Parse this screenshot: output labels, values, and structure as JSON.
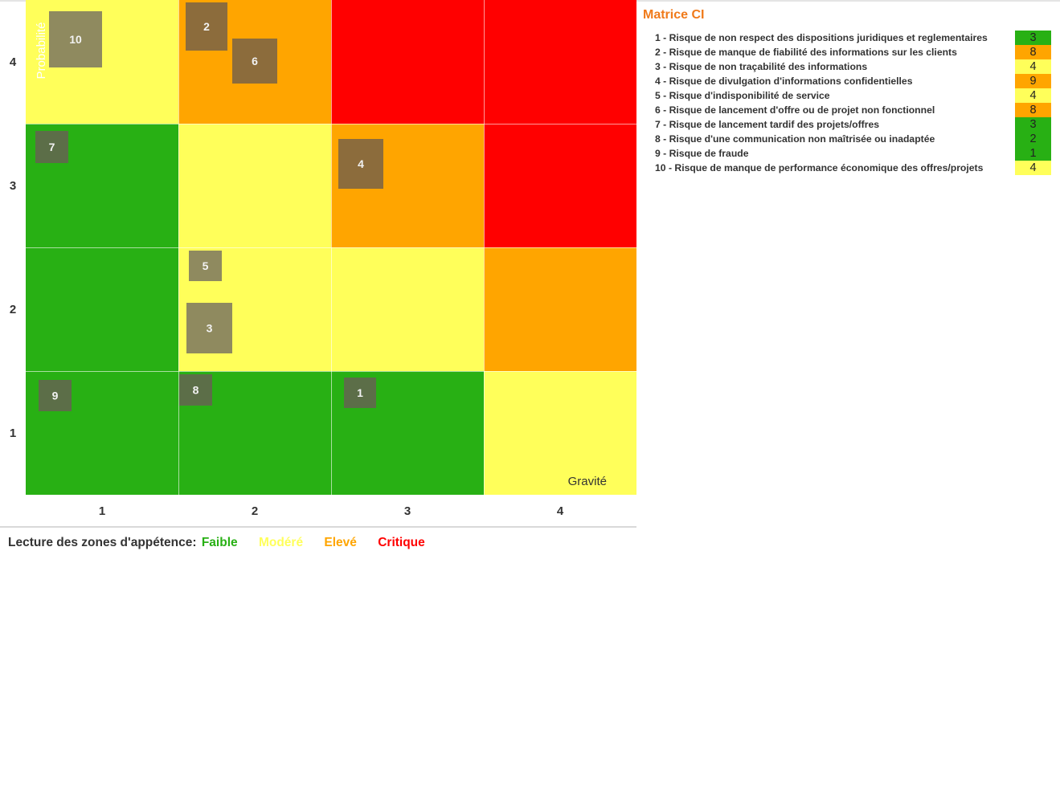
{
  "chart_data": {
    "type": "risk-matrix",
    "xlabel": "Gravité",
    "ylabel": "Probabilité",
    "x_ticks": [
      "1",
      "2",
      "3",
      "4"
    ],
    "y_ticks": [
      "1",
      "2",
      "3",
      "4"
    ],
    "zone_grid": [
      [
        "faible",
        "faible",
        "faible",
        "modere"
      ],
      [
        "faible",
        "modere",
        "modere",
        "eleve"
      ],
      [
        "faible",
        "modere",
        "eleve",
        "critique"
      ],
      [
        "modere",
        "eleve",
        "critique",
        "critique"
      ]
    ],
    "risks": [
      {
        "id": "1",
        "gravity": 3,
        "probability": 1,
        "tone": "dark"
      },
      {
        "id": "2",
        "gravity": 2,
        "probability": 4,
        "tone": "dark"
      },
      {
        "id": "3",
        "gravity": 2,
        "probability": 2,
        "tone": "light"
      },
      {
        "id": "4",
        "gravity": 3,
        "probability": 3,
        "tone": "dark"
      },
      {
        "id": "5",
        "gravity": 2,
        "probability": 2,
        "tone": "light"
      },
      {
        "id": "6",
        "gravity": 2,
        "probability": 4,
        "tone": "dark"
      },
      {
        "id": "7",
        "gravity": 1,
        "probability": 3,
        "tone": "dark"
      },
      {
        "id": "8",
        "gravity": 2,
        "probability": 1,
        "tone": "dark"
      },
      {
        "id": "9",
        "gravity": 1,
        "probability": 1,
        "tone": "dark"
      },
      {
        "id": "10",
        "gravity": 1,
        "probability": 4,
        "tone": "light"
      }
    ]
  },
  "colors": {
    "faible": "#28b014",
    "modere": "#ffff5a",
    "eleve": "#ffa500",
    "critique": "#ff0000",
    "marker_dark": "#5c6e48",
    "marker_light": "#8f8a5f",
    "marker_on_orange": "#8c6c3c",
    "title": "#f07a1a"
  },
  "legend": {
    "prefix": "Lecture des zones d'appétence:",
    "zones": [
      {
        "key": "faible",
        "label": "Faible",
        "color": "#28b014"
      },
      {
        "key": "modere",
        "label": "Modéré",
        "color": "#ffff5a"
      },
      {
        "key": "eleve",
        "label": "Elevé",
        "color": "#ffa500"
      },
      {
        "key": "critique",
        "label": "Critique",
        "color": "#ff0000"
      }
    ]
  },
  "panel": {
    "title": "Matrice CI",
    "risks": [
      {
        "label": "1 - Risque de non respect des dispositions juridiques et reglementaires",
        "score": "3",
        "zone": "faible"
      },
      {
        "label": "2 - Risque de manque de fiabilité des informations sur les clients",
        "score": "8",
        "zone": "eleve"
      },
      {
        "label": "3 - Risque de non traçabilité des informations",
        "score": "4",
        "zone": "modere"
      },
      {
        "label": "4 - Risque de divulgation d'informations confidentielles",
        "score": "9",
        "zone": "eleve"
      },
      {
        "label": "5 - Risque d'indisponibilité de service",
        "score": "4",
        "zone": "modere"
      },
      {
        "label": "6 - Risque de lancement d'offre ou de projet non fonctionnel",
        "score": "8",
        "zone": "eleve"
      },
      {
        "label": "7 - Risque de lancement tardif des projets/offres",
        "score": "3",
        "zone": "faible"
      },
      {
        "label": "8 - Risque d'une communication non maîtrisée ou inadaptée",
        "score": "2",
        "zone": "faible"
      },
      {
        "label": "9 - Risque de fraude",
        "score": "1",
        "zone": "faible"
      },
      {
        "label": "10 - Risque de manque de performance économique des offres/projets",
        "score": "4",
        "zone": "modere"
      }
    ]
  }
}
